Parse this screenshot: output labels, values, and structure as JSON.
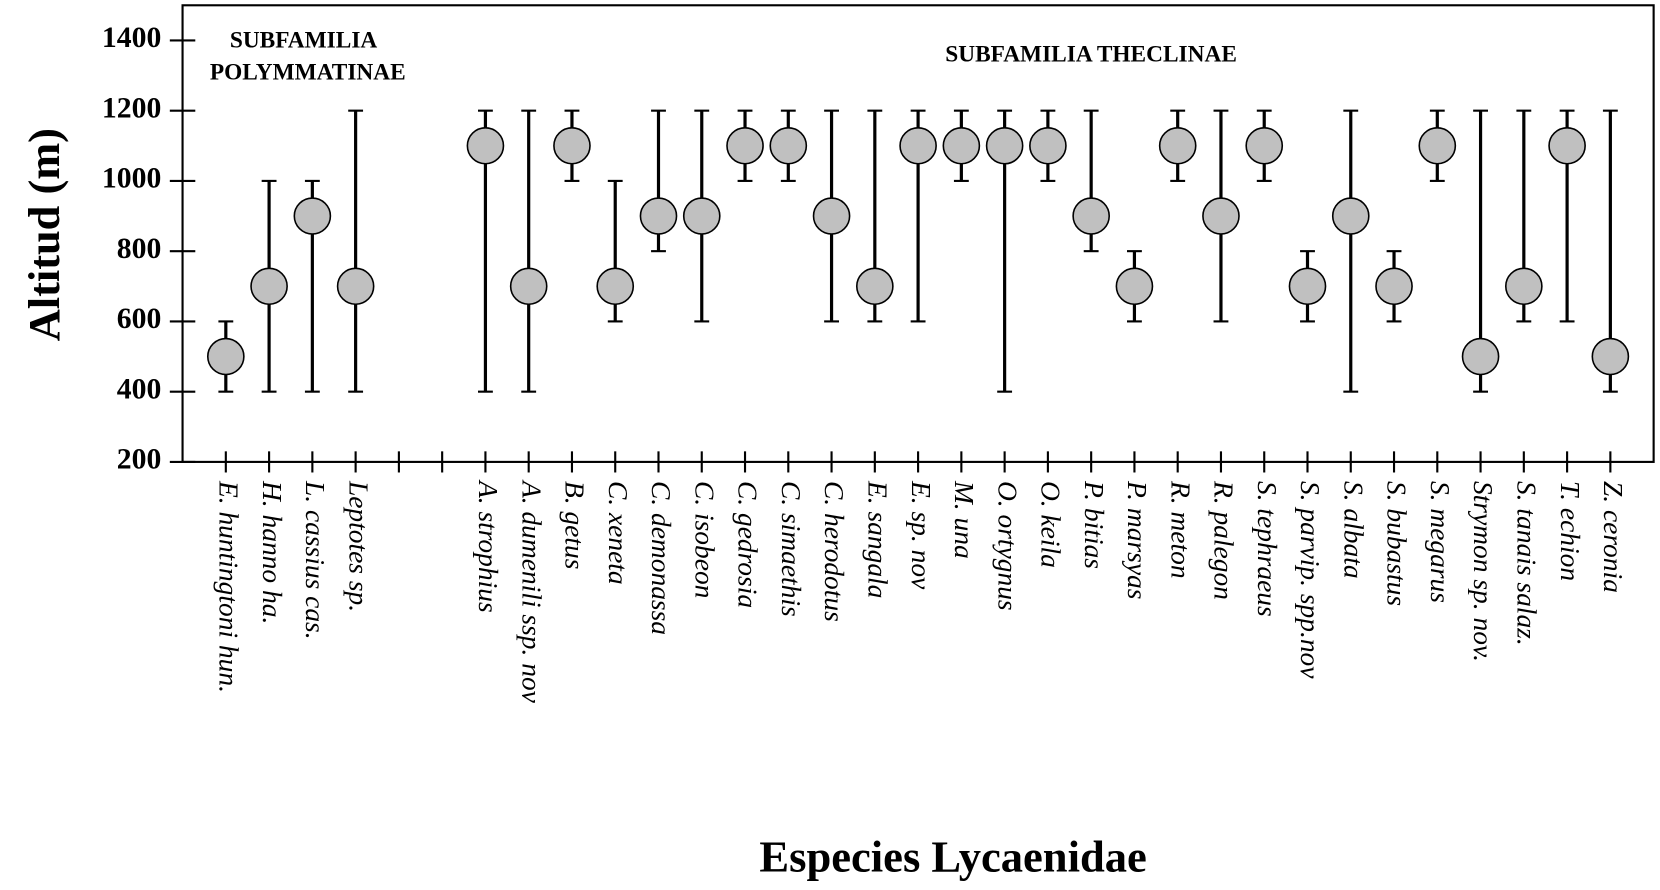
{
  "chart_data": {
    "type": "range-point",
    "annotations": [
      "SUBFAMILIA",
      "POLYMMATINAE",
      "SUBFAMILIA THECLINAE"
    ],
    "xlabel": "Especies Lycaenidae",
    "ylabel": "Altitud (m)",
    "categories": [
      "E. huntingtoni hun.",
      "H. hanno ha.",
      "L. cassius cas.",
      "Leptotes sp.",
      null,
      null,
      "A. strophius",
      "A. dumenili ssp. nov",
      "B. getus",
      "C. xeneta",
      "C. demonassa",
      "C. isobeon",
      "C. gedrosia",
      "C. simaethis",
      "C. herodotus",
      "E. sangala",
      "E. sp. nov",
      "M. una",
      "O. ortygnus",
      "O. keila",
      "P. bitias",
      "P. marsyas",
      "R. meton",
      "R. palegon",
      "S. tephraeus",
      "S. parvip. spp.nov",
      "S. albata",
      "S. bubastus",
      "S. megarus",
      "Strymon sp. nov.",
      "S. tanais salaz.",
      "T. echion",
      "Z. ceronia"
    ],
    "values": [
      500,
      700,
      900,
      700,
      null,
      null,
      1100,
      700,
      1100,
      700,
      900,
      900,
      1100,
      1100,
      900,
      700,
      1100,
      1100,
      1100,
      1100,
      900,
      700,
      1100,
      900,
      1100,
      700,
      900,
      700,
      1100,
      500,
      700,
      1100,
      500
    ],
    "min": [
      400,
      400,
      400,
      400,
      null,
      null,
      400,
      400,
      1000,
      600,
      800,
      600,
      1000,
      1000,
      600,
      600,
      600,
      1000,
      400,
      1000,
      800,
      600,
      1000,
      600,
      1000,
      600,
      400,
      600,
      1000,
      400,
      600,
      600,
      400
    ],
    "max": [
      600,
      1000,
      1000,
      1200,
      null,
      null,
      1200,
      1200,
      1200,
      1000,
      1200,
      1200,
      1200,
      1200,
      1200,
      1200,
      1200,
      1200,
      1200,
      1200,
      1200,
      800,
      1200,
      1200,
      1200,
      800,
      1200,
      800,
      1200,
      1200,
      1200,
      1200,
      1200
    ],
    "color": "#c0c0c0",
    "ylim": [
      200,
      1500
    ],
    "yticks": [
      200,
      400,
      600,
      800,
      1000,
      1200,
      1400
    ]
  }
}
